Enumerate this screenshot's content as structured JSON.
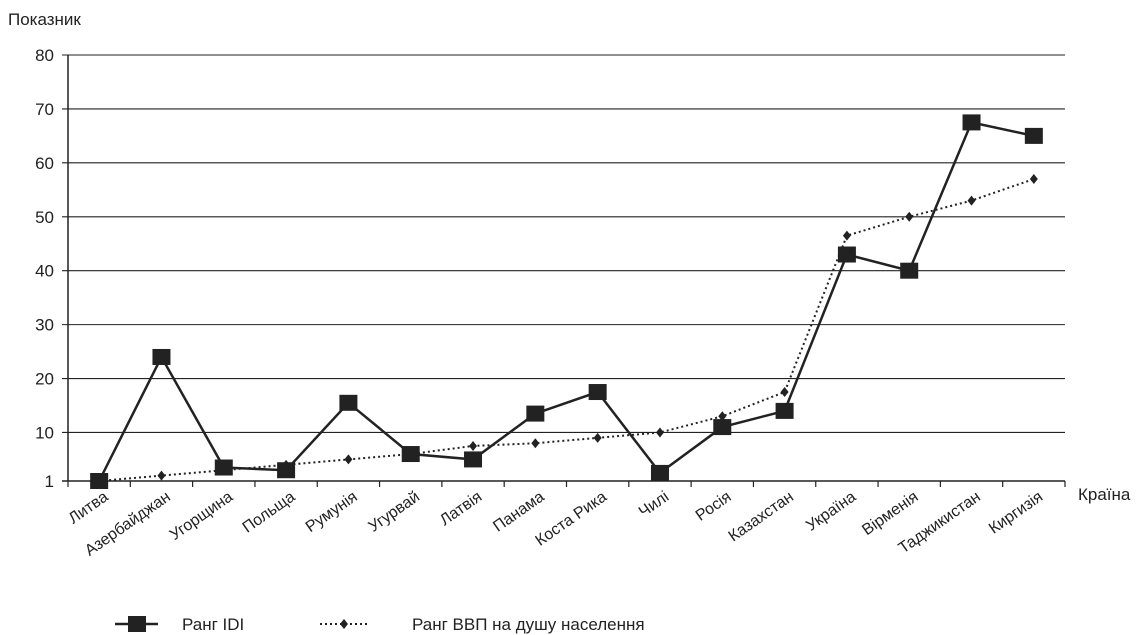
{
  "chart_data": {
    "type": "line",
    "ylabel": "Показник",
    "xlabel": "Країна",
    "categories": [
      "Литва",
      "Азербайджан",
      "Угорщина",
      "Польща",
      "Румунія",
      "Угурвай",
      "Латвія",
      "Панама",
      "Коста Рика",
      "Чилі",
      "Росія",
      "Казахстан",
      "Україна",
      "Вірменія",
      "Таджикистан",
      "Киргизія"
    ],
    "yticks": [
      1,
      10,
      20,
      30,
      40,
      50,
      60,
      70,
      80
    ],
    "ylim": [
      1,
      80
    ],
    "grid": true,
    "legend_position": "bottom-left",
    "series": [
      {
        "name": "Ранг IDI",
        "style": "solid",
        "marker": "square",
        "color": "#222222",
        "values": [
          1,
          24,
          3.5,
          3,
          15.5,
          6,
          5,
          13.5,
          17.5,
          2.5,
          11,
          14,
          43,
          40,
          67.5,
          65
        ]
      },
      {
        "name": "Ранг ВВП на душу населення",
        "style": "dotted",
        "marker": "diamond",
        "color": "#222222",
        "values": [
          1,
          2,
          3,
          4,
          5,
          6,
          7.5,
          8,
          9,
          10,
          13,
          17.5,
          46.5,
          50,
          53,
          57
        ]
      }
    ]
  }
}
